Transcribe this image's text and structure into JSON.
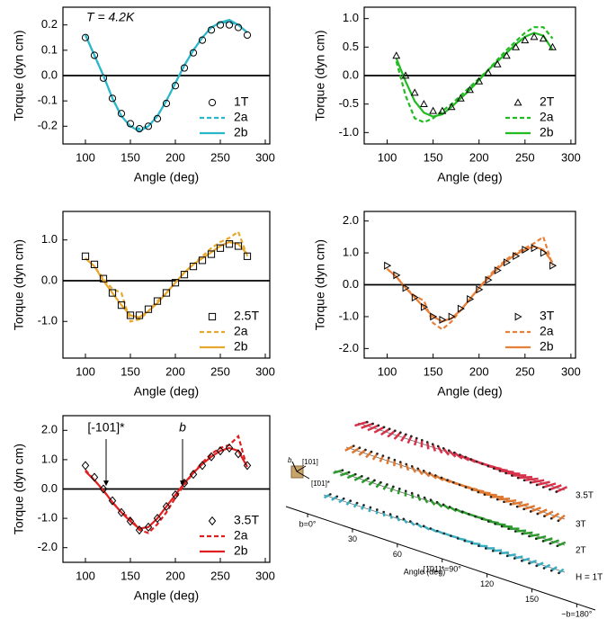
{
  "chart_data": [
    {
      "type": "line",
      "x": [
        100,
        110,
        120,
        130,
        140,
        150,
        160,
        170,
        180,
        190,
        200,
        210,
        220,
        230,
        240,
        250,
        260,
        270,
        280
      ],
      "xlim": [
        75,
        305
      ],
      "xticks": [
        100,
        150,
        200,
        250,
        300
      ],
      "xlabel": "Angle (deg)",
      "ylim": [
        -0.27,
        0.27
      ],
      "yticks": [
        -0.2,
        -0.1,
        {
          "value": 0,
          "label": "0.0"
        },
        0.1,
        0.2
      ],
      "ylabel": "Torque (dyn cm)",
      "zero_line": true,
      "legend": "lower right",
      "annotations": [
        "T = 4.2K"
      ],
      "series": [
        {
          "name": "1T",
          "style": "markers",
          "marker": "circle",
          "color": "#000000",
          "values": [
            0.15,
            0.08,
            -0.01,
            -0.09,
            -0.15,
            -0.19,
            -0.21,
            -0.2,
            -0.17,
            -0.11,
            -0.04,
            0.03,
            0.09,
            0.14,
            0.18,
            0.2,
            0.2,
            0.19,
            0.16
          ]
        },
        {
          "name": "2a",
          "style": "dashed",
          "color": "#2ab7c9",
          "values": [
            0.16,
            0.08,
            0.0,
            -0.09,
            -0.16,
            -0.2,
            -0.21,
            -0.2,
            -0.16,
            -0.1,
            -0.03,
            0.04,
            0.1,
            0.15,
            0.19,
            0.21,
            0.21,
            0.2,
            0.17
          ]
        },
        {
          "name": "2b",
          "style": "solid",
          "color": "#2ab7c9",
          "values": [
            0.16,
            0.08,
            0.0,
            -0.09,
            -0.16,
            -0.2,
            -0.22,
            -0.2,
            -0.16,
            -0.1,
            -0.03,
            0.04,
            0.1,
            0.15,
            0.19,
            0.21,
            0.22,
            0.2,
            0.17
          ]
        }
      ]
    },
    {
      "type": "line",
      "x": [
        100,
        110,
        120,
        130,
        140,
        150,
        160,
        170,
        180,
        190,
        200,
        210,
        220,
        230,
        240,
        250,
        260,
        270,
        280
      ],
      "xlim": [
        75,
        305
      ],
      "xticks": [
        100,
        150,
        200,
        250,
        300
      ],
      "xlabel": "Angle (deg)",
      "ylim": [
        -1.2,
        1.2
      ],
      "yticks": [
        {
          "value": -1,
          "label": "-1.0"
        },
        -0.5,
        {
          "value": 0,
          "label": "0.0"
        },
        0.5,
        {
          "value": 1,
          "label": "1.0"
        }
      ],
      "ylabel": "Torque (dyn cm)",
      "zero_line": true,
      "legend": "lower right",
      "annotations": [],
      "series": [
        {
          "name": "2T",
          "style": "markers",
          "marker": "triangle",
          "color": "#000000",
          "values": [
            null,
            0.35,
            0.0,
            -0.3,
            -0.5,
            -0.62,
            -0.62,
            -0.55,
            -0.4,
            -0.25,
            -0.1,
            0.05,
            0.2,
            0.35,
            0.5,
            0.62,
            0.68,
            0.65,
            0.5
          ]
        },
        {
          "name": "2a",
          "style": "dashed",
          "color": "#22bb22",
          "values": [
            null,
            0.25,
            -0.35,
            -0.75,
            -0.82,
            -0.75,
            -0.62,
            -0.5,
            -0.35,
            -0.2,
            -0.05,
            0.1,
            0.28,
            0.45,
            0.6,
            0.75,
            0.85,
            0.85,
            0.65
          ]
        },
        {
          "name": "2b",
          "style": "solid",
          "color": "#22bb22",
          "values": [
            null,
            0.3,
            -0.1,
            -0.45,
            -0.65,
            -0.72,
            -0.68,
            -0.55,
            -0.4,
            -0.25,
            -0.08,
            0.1,
            0.25,
            0.4,
            0.55,
            0.68,
            0.75,
            0.7,
            0.45
          ]
        }
      ]
    },
    {
      "type": "line",
      "x": [
        100,
        110,
        120,
        130,
        140,
        150,
        160,
        170,
        180,
        190,
        200,
        210,
        220,
        230,
        240,
        250,
        260,
        270,
        280
      ],
      "xlim": [
        75,
        305
      ],
      "xticks": [
        100,
        150,
        200,
        250,
        300
      ],
      "xlabel": "Angle (deg)",
      "ylim": [
        -1.9,
        1.7
      ],
      "yticks": [
        {
          "value": -1,
          "label": "-1.0"
        },
        {
          "value": 0,
          "label": "0.0"
        },
        {
          "value": 1,
          "label": "1.0"
        }
      ],
      "ylabel": "Torque (dyn cm)",
      "zero_line": true,
      "legend": "lower right",
      "annotations": [],
      "series": [
        {
          "name": "2.5T",
          "style": "markers",
          "marker": "square",
          "color": "#000000",
          "values": [
            0.6,
            0.4,
            0.05,
            -0.3,
            -0.6,
            -0.85,
            -0.85,
            -0.7,
            -0.5,
            -0.3,
            -0.05,
            0.15,
            0.35,
            0.5,
            0.65,
            0.8,
            0.9,
            0.85,
            0.6
          ]
        },
        {
          "name": "2a",
          "style": "dashed",
          "color": "#e6a82e",
          "values": [
            0.55,
            0.35,
            0.05,
            -0.2,
            -0.3,
            -1.0,
            -0.95,
            -0.75,
            -0.5,
            -0.3,
            -0.05,
            0.2,
            0.4,
            0.6,
            0.8,
            0.95,
            1.05,
            1.2,
            0.6
          ]
        },
        {
          "name": "2b",
          "style": "solid",
          "color": "#e6a82e",
          "values": [
            0.55,
            0.35,
            0.0,
            -0.3,
            -0.6,
            -0.85,
            -0.9,
            -0.75,
            -0.55,
            -0.3,
            -0.05,
            0.2,
            0.4,
            0.55,
            0.7,
            0.85,
            0.95,
            0.9,
            0.65
          ]
        }
      ]
    },
    {
      "type": "line",
      "x": [
        100,
        110,
        120,
        130,
        140,
        150,
        160,
        170,
        180,
        190,
        200,
        210,
        220,
        230,
        240,
        250,
        260,
        270,
        280
      ],
      "xlim": [
        75,
        305
      ],
      "xticks": [
        100,
        150,
        200,
        250,
        300
      ],
      "xlabel": "Angle (deg)",
      "ylim": [
        -2.3,
        2.3
      ],
      "yticks": [
        {
          "value": -2,
          "label": "-2.0"
        },
        {
          "value": -1,
          "label": "-1.0"
        },
        {
          "value": 0,
          "label": "0.0"
        },
        {
          "value": 1,
          "label": "1.0"
        },
        {
          "value": 2,
          "label": "2.0"
        }
      ],
      "ylabel": "Torque (dyn cm)",
      "zero_line": true,
      "legend": "lower right",
      "annotations": [],
      "series": [
        {
          "name": "3T",
          "style": "markers",
          "marker": "right-triangle",
          "color": "#000000",
          "values": [
            0.6,
            0.3,
            -0.1,
            -0.4,
            -0.7,
            -1.0,
            -1.1,
            -1.0,
            -0.75,
            -0.45,
            -0.15,
            0.15,
            0.45,
            0.7,
            0.9,
            1.1,
            1.15,
            1.0,
            0.6
          ]
        },
        {
          "name": "2a",
          "style": "dashed",
          "color": "#e8803a",
          "values": [
            0.5,
            0.25,
            -0.1,
            -0.35,
            -0.5,
            -1.2,
            -1.4,
            -1.15,
            -0.8,
            -0.45,
            -0.1,
            0.25,
            0.55,
            0.8,
            1.0,
            1.15,
            1.3,
            1.5,
            0.6
          ]
        },
        {
          "name": "2b",
          "style": "solid",
          "color": "#e8803a",
          "values": [
            0.5,
            0.25,
            -0.1,
            -0.4,
            -0.7,
            -1.0,
            -1.15,
            -1.05,
            -0.8,
            -0.45,
            -0.1,
            0.2,
            0.5,
            0.75,
            0.95,
            1.1,
            1.2,
            1.1,
            0.7
          ]
        }
      ]
    },
    {
      "type": "line",
      "x": [
        100,
        110,
        120,
        130,
        140,
        150,
        160,
        170,
        180,
        190,
        200,
        210,
        220,
        230,
        240,
        250,
        260,
        270,
        280
      ],
      "xlim": [
        75,
        305
      ],
      "xticks": [
        100,
        150,
        200,
        250,
        300
      ],
      "xlabel": "Angle (deg)",
      "ylim": [
        -2.5,
        2.5
      ],
      "yticks": [
        {
          "value": -2,
          "label": "-2.0"
        },
        {
          "value": -1,
          "label": "-1.0"
        },
        {
          "value": 0,
          "label": "0.0"
        },
        {
          "value": 1,
          "label": "1.0"
        },
        {
          "value": 2,
          "label": "2.0"
        }
      ],
      "ylabel": "Torque (dyn cm)",
      "zero_line": true,
      "legend": "lower right",
      "annotations": [
        "[-101]*",
        "b"
      ],
      "series": [
        {
          "name": "3.5T",
          "style": "markers",
          "marker": "diamond",
          "color": "#000000",
          "values": [
            0.8,
            0.4,
            0.0,
            -0.4,
            -0.8,
            -1.1,
            -1.4,
            -1.3,
            -1.0,
            -0.6,
            -0.2,
            0.2,
            0.5,
            0.8,
            1.1,
            1.3,
            1.4,
            1.2,
            0.8
          ]
        },
        {
          "name": "2a",
          "style": "dashed",
          "color": "#e02020",
          "values": [
            0.65,
            0.3,
            -0.05,
            -0.45,
            -0.8,
            -1.0,
            -1.4,
            -1.5,
            -1.2,
            -0.8,
            -0.3,
            0.15,
            0.55,
            0.9,
            1.2,
            1.4,
            1.5,
            1.8,
            0.7
          ]
        },
        {
          "name": "2b",
          "style": "solid",
          "color": "#e02020",
          "values": [
            0.6,
            0.3,
            -0.05,
            -0.45,
            -0.8,
            -1.1,
            -1.35,
            -1.3,
            -1.0,
            -0.6,
            -0.2,
            0.2,
            0.55,
            0.85,
            1.1,
            1.3,
            1.4,
            1.3,
            0.75
          ]
        }
      ]
    }
  ],
  "inset": {
    "rows": [
      "3.5T",
      "3T",
      "2T",
      "H = 1T"
    ],
    "axis_ticks": [
      "b=0°",
      "30",
      "60",
      "[1̄01]*=90°",
      "120",
      "150",
      "−b=180°"
    ],
    "axis_title": "Angle (deg)",
    "crystal_labels": [
      "b",
      "[101]",
      "[1̄01]*"
    ]
  }
}
